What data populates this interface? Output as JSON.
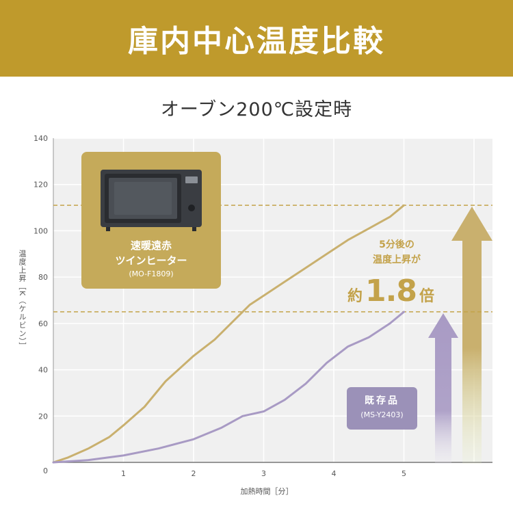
{
  "title": "庫内中心温度比較",
  "chart_subtitle": "オーブン200℃設定時",
  "colors": {
    "banner": "#bf9a2c",
    "plot_bg": "#f0f0f0",
    "gold_series": "#c9b06e",
    "purple_series": "#a89ac4",
    "gold_card": "#c5aa5a",
    "purple_card": "#9b91b8",
    "annotation": "#c3a24a"
  },
  "chart_data": {
    "type": "line",
    "xlabel": "加熱時間［分］",
    "ylabel": "温度上昇［K（ケルビン）］",
    "xlim": [
      0,
      6.3
    ],
    "ylim": [
      0,
      140
    ],
    "x_ticks": [
      "1",
      "2",
      "3",
      "4",
      "5"
    ],
    "y_ticks": [
      "0",
      "20",
      "40",
      "60",
      "80",
      "100",
      "120",
      "140"
    ],
    "grid": true,
    "reference_lines": [
      111,
      65
    ],
    "series": [
      {
        "name": "速暖遠赤ツインヒーター",
        "color": "gold",
        "x": [
          0,
          0.2,
          0.5,
          0.8,
          1.0,
          1.3,
          1.6,
          2.0,
          2.3,
          2.6,
          2.8,
          3.0,
          3.3,
          3.6,
          3.9,
          4.2,
          4.5,
          4.8,
          5.0
        ],
        "y": [
          0,
          2,
          6,
          11,
          16,
          24,
          35,
          46,
          53,
          62,
          68,
          72,
          78,
          84,
          90,
          96,
          101,
          106,
          111
        ]
      },
      {
        "name": "既存品",
        "color": "purple",
        "x": [
          0,
          0.5,
          1.0,
          1.5,
          2.0,
          2.4,
          2.7,
          3.0,
          3.3,
          3.6,
          3.9,
          4.2,
          4.5,
          4.8,
          5.0
        ],
        "y": [
          0,
          1,
          3,
          6,
          10,
          15,
          20,
          22,
          27,
          34,
          43,
          50,
          54,
          60,
          65
        ]
      }
    ]
  },
  "product_card": {
    "name_line1": "速暖遠赤",
    "name_line2": "ツインヒーター",
    "model": "(MO-F1809)"
  },
  "existing_card": {
    "name": "既存品",
    "model": "(MS-Y2403)"
  },
  "annotation": {
    "line1": "5分後の",
    "line2": "温度上昇が",
    "prefix": "約",
    "ratio": "1.8",
    "suffix": "倍"
  }
}
